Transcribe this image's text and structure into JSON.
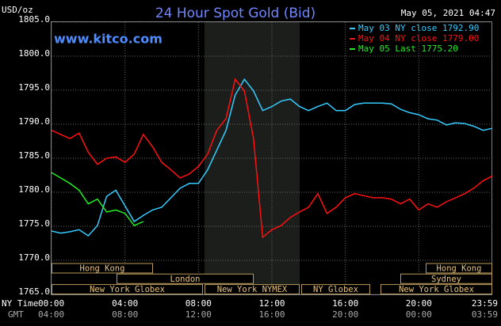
{
  "chart_data": {
    "type": "line",
    "title": "24 Hour Spot Gold (Bid)",
    "y_unit": "USD/oz",
    "site": "www.kitco.com",
    "timestamp": "May 05, 2021 04:47",
    "x": [
      0,
      0.5,
      1,
      1.5,
      2,
      2.5,
      3,
      3.5,
      4,
      4.5,
      5,
      5.5,
      6,
      6.5,
      7,
      7.5,
      8,
      8.5,
      9,
      9.5,
      10,
      10.5,
      11,
      11.5,
      12,
      12.5,
      13,
      13.5,
      14,
      14.5,
      15,
      15.5,
      16,
      16.5,
      17,
      17.5,
      18,
      18.5,
      19,
      19.5,
      20,
      20.5,
      21,
      21.5,
      22,
      22.5,
      23,
      23.5,
      24
    ],
    "series": [
      {
        "name": "May 03 NY close 1792.90",
        "color": "#33ccff",
        "values": [
          1774.3,
          1774.0,
          1774.2,
          1774.5,
          1773.6,
          1775.1,
          1779.4,
          1780.3,
          1778.0,
          1775.7,
          1776.6,
          1777.4,
          1777.8,
          1779.2,
          1780.6,
          1781.3,
          1781.3,
          1783.3,
          1786.2,
          1789.1,
          1794.3,
          1796.6,
          1794.9,
          1792.0,
          1792.6,
          1793.4,
          1793.7,
          1792.6,
          1792.0,
          1792.6,
          1793.1,
          1792.0,
          1792.0,
          1792.9,
          1793.1,
          1793.1,
          1793.1,
          1793.0,
          1792.2,
          1791.7,
          1791.4,
          1790.8,
          1790.6,
          1789.9,
          1790.2,
          1790.1,
          1789.7,
          1789.1,
          1789.4
        ]
      },
      {
        "name": "May 04 NY close 1779.00",
        "color": "#ff1010",
        "values": [
          1789.1,
          1788.5,
          1787.9,
          1788.7,
          1785.9,
          1784.1,
          1785.0,
          1785.2,
          1784.4,
          1785.6,
          1788.5,
          1786.7,
          1784.4,
          1783.3,
          1782.1,
          1782.7,
          1783.8,
          1785.6,
          1789.1,
          1790.8,
          1796.6,
          1794.9,
          1787.9,
          1773.4,
          1774.5,
          1775.1,
          1776.3,
          1777.1,
          1777.8,
          1779.8,
          1776.9,
          1777.8,
          1779.2,
          1779.8,
          1779.5,
          1779.2,
          1779.2,
          1779.0,
          1778.3,
          1779.0,
          1777.4,
          1778.3,
          1777.8,
          1778.6,
          1779.2,
          1779.8,
          1780.6,
          1781.7,
          1782.4
        ]
      },
      {
        "name": "May 05 Last 1775.20",
        "color": "#22ee22",
        "values": [
          1782.9,
          1782.1,
          1781.3,
          1780.3,
          1778.3,
          1779.0,
          1777.1,
          1777.4,
          1776.9,
          1775.1,
          1775.7,
          null,
          null,
          null,
          null,
          null,
          null,
          null,
          null,
          null,
          null,
          null,
          null,
          null,
          null,
          null,
          null,
          null,
          null,
          null,
          null,
          null,
          null,
          null,
          null,
          null,
          null,
          null,
          null,
          null,
          null,
          null,
          null,
          null,
          null,
          null,
          null,
          null,
          null
        ]
      }
    ],
    "ylim": [
      1765,
      1805
    ],
    "yticks": [
      {
        "value": 1765,
        "label": "1765.0"
      },
      {
        "value": 1770,
        "label": "1770.0"
      },
      {
        "value": 1775,
        "label": "1775.0"
      },
      {
        "value": 1780,
        "label": "1780.0"
      },
      {
        "value": 1785,
        "label": "1785.0"
      },
      {
        "value": 1790,
        "label": "1790.0"
      },
      {
        "value": 1795,
        "label": "1795.0"
      },
      {
        "value": 1800,
        "label": "1800.0"
      },
      {
        "value": 1805,
        "label": "1805.0"
      }
    ],
    "xlim": [
      0,
      24
    ],
    "xticks": [
      {
        "value": 0,
        "label": "00:00"
      },
      {
        "value": 4,
        "label": "04:00"
      },
      {
        "value": 8,
        "label": "08:00"
      },
      {
        "value": 12,
        "label": "12:00"
      },
      {
        "value": 16,
        "label": "16:00"
      },
      {
        "value": 20,
        "label": "20:00"
      },
      {
        "value": 23.98,
        "label": "23:59"
      }
    ],
    "x_row_label": "NY Time",
    "x2_row_label": "GMT",
    "x2_tick_labels": [
      "04:00",
      "08:00",
      "12:00",
      "16:00",
      "20:00",
      "00:00",
      "03:59"
    ],
    "sessions": [
      "Hong Kong",
      "London",
      "New York Globex",
      "New York NYMEX",
      "NY Globex",
      "Hong Kong",
      "Sydney",
      "New York Globex"
    ],
    "grid": true
  }
}
